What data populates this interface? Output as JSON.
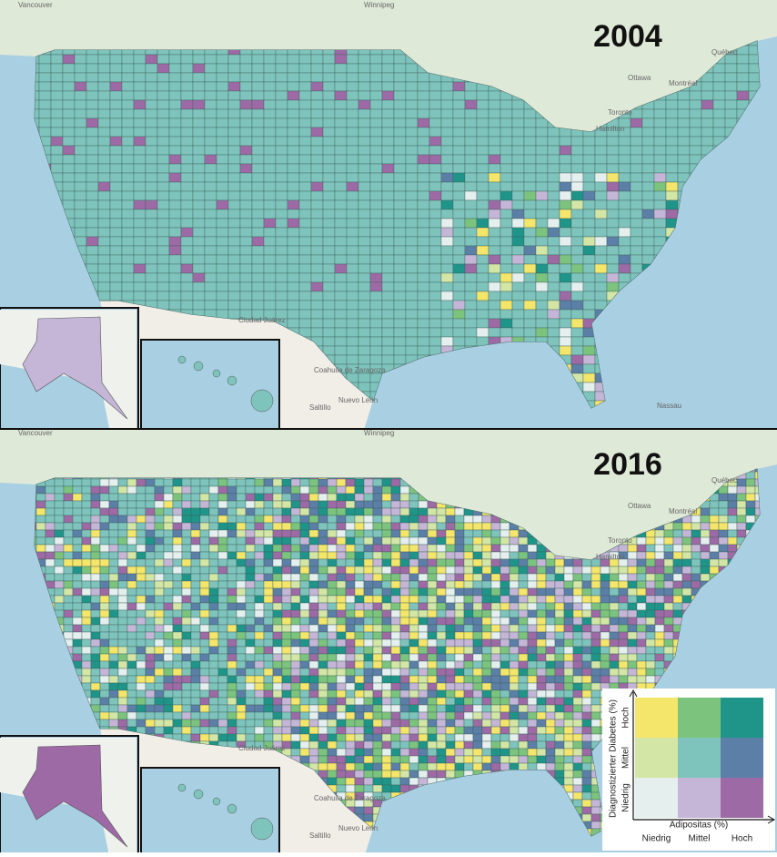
{
  "panels": [
    {
      "year": "2004",
      "pattern": "uniform"
    },
    {
      "year": "2016",
      "pattern": "mixed"
    }
  ],
  "places": [
    "Vancouver",
    "Winnipeg",
    "Québec",
    "Ottawa",
    "Montréal",
    "Toronto",
    "Hamilton",
    "Ciudad Juárez",
    "Coahuila de Zaragoza",
    "Nuevo León",
    "Saltillo",
    "Nassau"
  ],
  "legend": {
    "y_label": "Diagnostizierter Diabetes (%)",
    "x_label": "Adipositas (%)",
    "levels": [
      "Niedrig",
      "Mittel",
      "Hoch"
    ],
    "colors": [
      [
        "#e4efee",
        "#c5b6d8",
        "#9d6aa5"
      ],
      [
        "#d3e6a6",
        "#7ec4bc",
        "#5b7fa7"
      ],
      [
        "#f4e56b",
        "#7cc47e",
        "#1f958a"
      ]
    ]
  }
}
